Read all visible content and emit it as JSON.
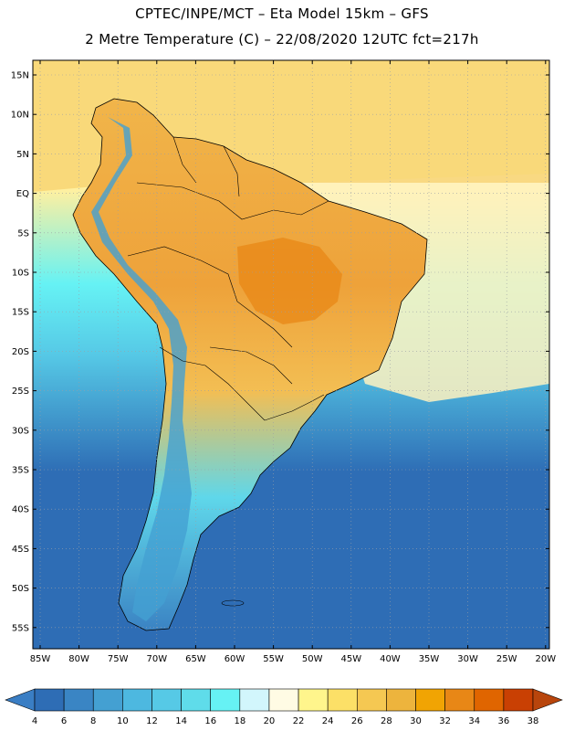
{
  "header": {
    "title_line1": "CPTEC/INPE/MCT –  Eta Model 15km – GFS",
    "title_line2": "2 Metre Temperature (C) – 22/08/2020 12UTC fct=217h"
  },
  "axes": {
    "lat_labels": [
      "15N",
      "10N",
      "5N",
      "EQ",
      "5S",
      "10S",
      "15S",
      "20S",
      "25S",
      "30S",
      "35S",
      "40S",
      "45S",
      "50S",
      "55S"
    ],
    "lon_labels": [
      "85W",
      "80W",
      "75W",
      "70W",
      "65W",
      "60W",
      "55W",
      "50W",
      "45W",
      "40W",
      "35W",
      "30W",
      "25W",
      "20W"
    ]
  },
  "colorbar": {
    "labels": [
      "4",
      "6",
      "8",
      "10",
      "12",
      "14",
      "16",
      "18",
      "20",
      "22",
      "24",
      "26",
      "28",
      "30",
      "32",
      "34",
      "36",
      "38"
    ],
    "colors": [
      "#2e6db5",
      "#3a85c4",
      "#44a0d2",
      "#4db8e0",
      "#56c9e6",
      "#5fdcea",
      "#66f2f4",
      "#d2f6fc",
      "#fffbe4",
      "#fff58c",
      "#fce067",
      "#f5c852",
      "#edb43d",
      "#f1a403",
      "#e88716",
      "#e06500",
      "#c94003"
    ],
    "arrow_left_color": "#3a7ec4",
    "arrow_right_color": "#b8450c"
  },
  "colors": {
    "ocean_south": "#2e6db5",
    "ocean_mid": "#56c9e6",
    "ocean_light": "#66f2f4",
    "ocean_tropic": "#fff0a0",
    "land_warm": "#edb43d",
    "land_hot": "#e88716",
    "andes_cold": "#44a0d2"
  }
}
